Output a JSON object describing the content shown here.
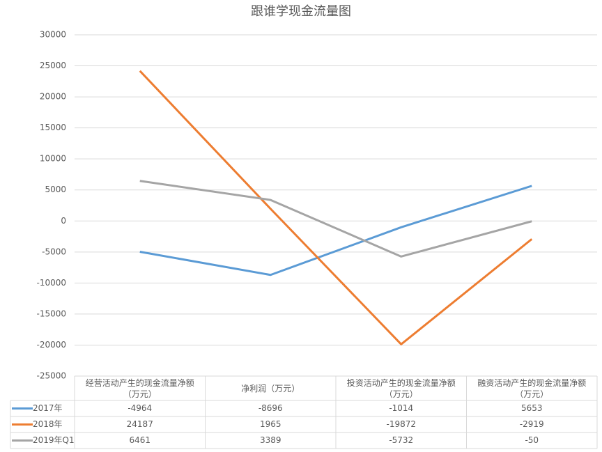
{
  "chart_data": {
    "type": "line",
    "title": "跟谁学现金流量图",
    "categories": [
      "经营活动产生的现金流量净额（万元）",
      "净利润（万元）",
      "投资活动产生的现金流量净额（万元）",
      "融资活动产生的现金流量净额（万元）"
    ],
    "series": [
      {
        "name": "2017年",
        "color": "#5b9bd5",
        "values": [
          -4964,
          -8696,
          -1014,
          5653
        ]
      },
      {
        "name": "2018年",
        "color": "#ed7d31",
        "values": [
          24187,
          1965,
          -19872,
          -2919
        ]
      },
      {
        "name": "2019年Q1",
        "color": "#a5a5a5",
        "values": [
          6461,
          3389,
          -5732,
          -50
        ]
      }
    ],
    "ylim": [
      -25000,
      30000
    ],
    "yticks": [
      -25000,
      -20000,
      -15000,
      -10000,
      -5000,
      0,
      5000,
      10000,
      15000,
      20000,
      25000,
      30000
    ],
    "grid": true
  }
}
